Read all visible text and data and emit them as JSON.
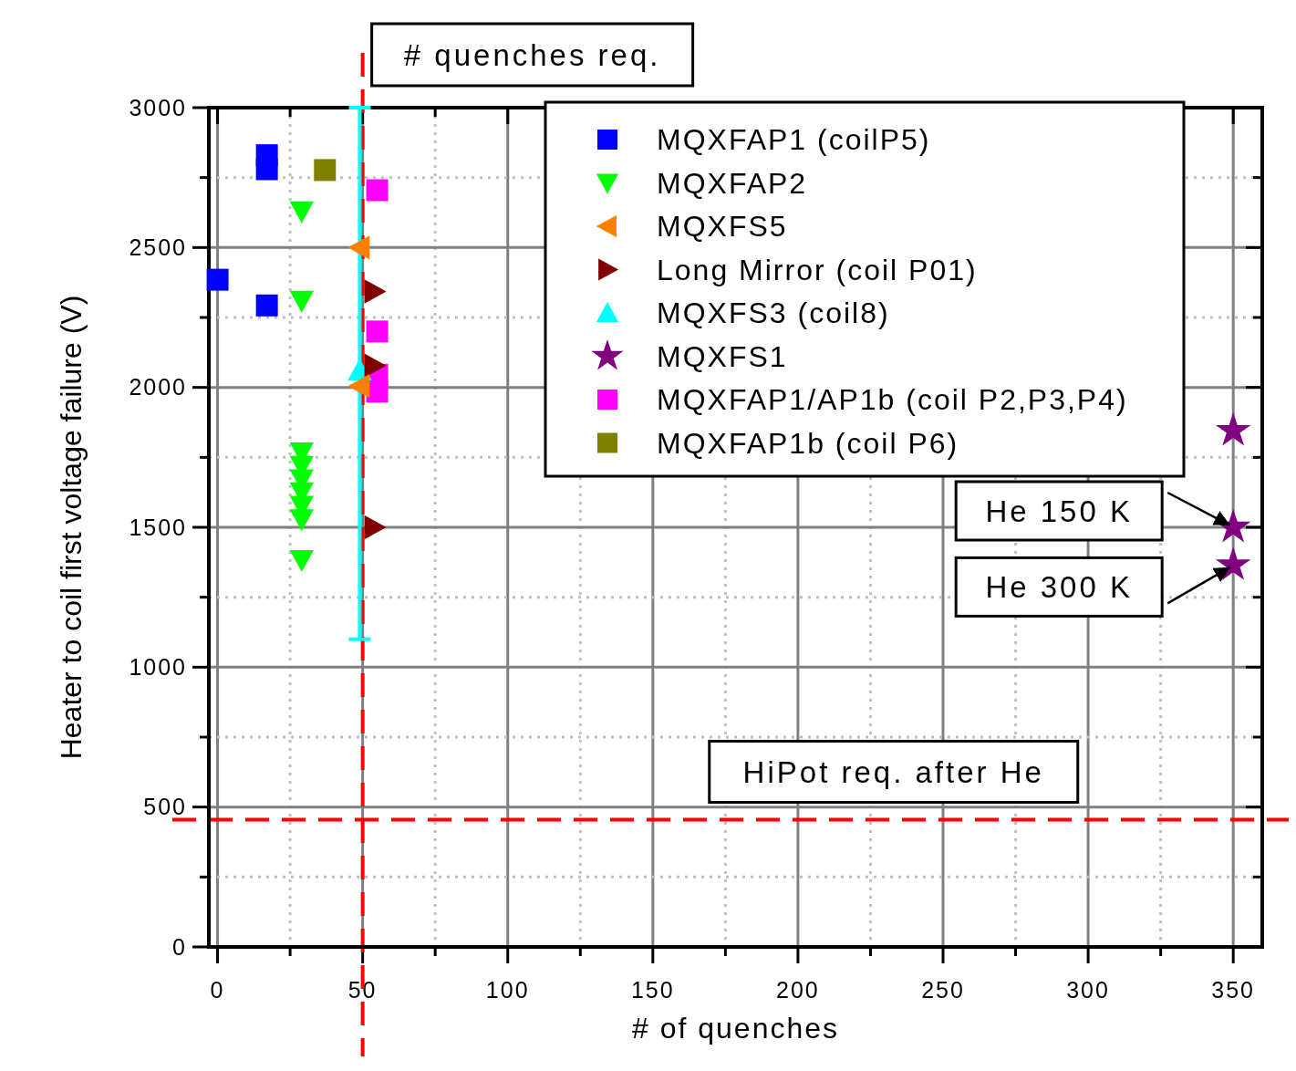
{
  "chart_data": {
    "type": "scatter",
    "xlabel": "# of quenches",
    "ylabel": "Heater to coil first voltage failure (V)",
    "xlim": [
      -3,
      360
    ],
    "ylim": [
      0,
      3000
    ],
    "xticks": [
      0,
      {
        "value": 25,
        "label": null
      },
      50,
      {
        "value": 75,
        "label": null
      },
      100,
      {
        "value": 125,
        "label": null
      },
      150,
      {
        "value": 175,
        "label": null
      },
      200,
      {
        "value": 225,
        "label": null
      },
      250,
      {
        "value": 275,
        "label": null
      },
      300,
      {
        "value": 325,
        "label": null
      },
      350
    ],
    "yticks": [
      0,
      {
        "value": 250,
        "label": null
      },
      500,
      {
        "value": 750,
        "label": null
      },
      1000,
      {
        "value": 1250,
        "label": null
      },
      1500,
      {
        "value": 1750,
        "label": null
      },
      2000,
      {
        "value": 2250,
        "label": null
      },
      2500,
      {
        "value": 2750,
        "label": null
      },
      3000
    ],
    "grid": true,
    "legend": "top right",
    "series": [
      {
        "name": "MQXFAP1 (coilP5)",
        "color": "#0000ff",
        "marker": "square",
        "x": [
          17,
          17,
          0,
          17
        ],
        "values": [
          2830,
          2780,
          2385,
          2293
        ]
      },
      {
        "name": "MQXFAP2",
        "color": "#00ff00",
        "marker": "triangle-down",
        "x": [
          29,
          29,
          29,
          29,
          29,
          29,
          29,
          29,
          29
        ],
        "values": [
          2630,
          2310,
          1768,
          1720,
          1672,
          1625,
          1577,
          1529,
          1383
        ]
      },
      {
        "name": "MQXFS5",
        "color": "#ff8000",
        "marker": "triangle-left",
        "x": [
          49,
          49
        ],
        "values": [
          2500,
          2005
        ]
      },
      {
        "name": "Long Mirror (coil P01)",
        "color": "#800000",
        "marker": "triangle-right",
        "x": [
          54,
          54,
          54
        ],
        "values": [
          2343,
          2078,
          1500
        ]
      },
      {
        "name": "MQXFS3 (coil8)",
        "color": "#00ffff",
        "marker": "triangle",
        "x": [
          49
        ],
        "values": [
          2060
        ],
        "errors": [
          [
            1100,
            3000
          ]
        ]
      },
      {
        "name": "MQXFS1",
        "color": "#800080",
        "marker": "star",
        "x": [
          350,
          350,
          350
        ],
        "values": [
          1845,
          1500,
          1365
        ]
      },
      {
        "name": "MQXFAP1/AP1b (coil P2,P3,P4)",
        "color": "#ff00ff",
        "marker": "square",
        "x": [
          55,
          55,
          55,
          55
        ],
        "values": [
          2705,
          2200,
          2045,
          1985
        ]
      },
      {
        "name": "MQXFAP1b (coil P6)",
        "color": "#808000",
        "marker": "square",
        "x": [
          37
        ],
        "values": [
          2777
        ]
      }
    ],
    "ref_lines": [
      {
        "axis": "x",
        "value": 50,
        "label": "# quenches req.",
        "color": "#ff0000",
        "line_style": "dashed"
      },
      {
        "axis": "y",
        "value": 455,
        "label": "HiPot req. after He",
        "color": "#ff0000",
        "line_style": "dashed"
      }
    ],
    "annotations": [
      {
        "text": "He 150 K",
        "x": 350,
        "y": 1500
      },
      {
        "text": "He 300 K",
        "x": 350,
        "y": 1365
      }
    ]
  }
}
